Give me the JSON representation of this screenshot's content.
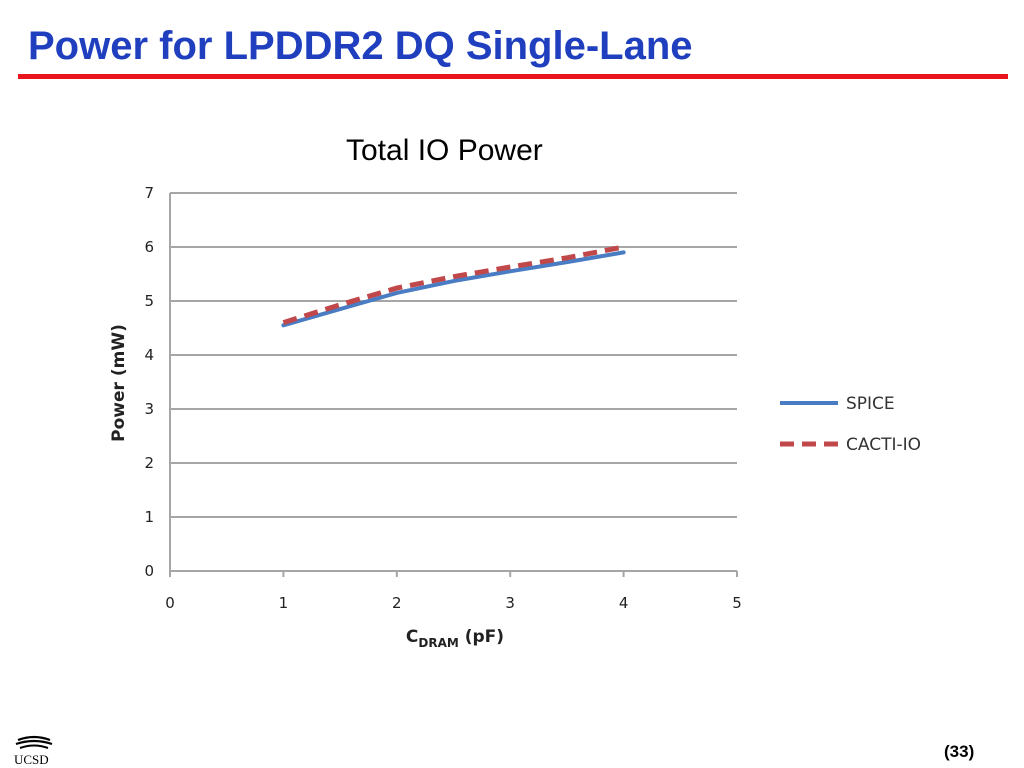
{
  "slide": {
    "title": "Power for LPDDR2 DQ Single-Lane",
    "page_number": "(33)",
    "logo_text": "UCSD"
  },
  "colors": {
    "title": "#1f3fbf",
    "rule": "#e8161c",
    "spice": "#4a7cc4",
    "cacti": "#c0474a",
    "grid": "#a6a6a6"
  },
  "chart_data": {
    "type": "line",
    "title": "Total IO Power",
    "xlabel_main": "C",
    "xlabel_sub": "DRAM",
    "xlabel_unit": " (pF)",
    "ylabel": "Power (mW)",
    "xlim": [
      0,
      5
    ],
    "ylim": [
      0,
      7
    ],
    "xticks": [
      0,
      1,
      2,
      3,
      4,
      5
    ],
    "yticks": [
      0,
      1,
      2,
      3,
      4,
      5,
      6,
      7
    ],
    "grid": true,
    "legend_position": "right",
    "series": [
      {
        "name": "SPICE",
        "style": "solid",
        "color": "#4a7cc4",
        "points": [
          [
            1,
            4.55
          ],
          [
            1.5,
            4.85
          ],
          [
            1.75,
            5.0
          ],
          [
            2,
            5.15
          ],
          [
            2.5,
            5.37
          ],
          [
            3,
            5.55
          ],
          [
            3.5,
            5.72
          ],
          [
            4,
            5.9
          ]
        ]
      },
      {
        "name": "CACTI-IO",
        "style": "dashed",
        "color": "#c0474a",
        "points": [
          [
            1,
            4.6
          ],
          [
            1.5,
            4.93
          ],
          [
            2,
            5.24
          ],
          [
            2.5,
            5.45
          ],
          [
            3,
            5.63
          ],
          [
            3.5,
            5.8
          ],
          [
            4,
            6.0
          ]
        ]
      }
    ]
  }
}
